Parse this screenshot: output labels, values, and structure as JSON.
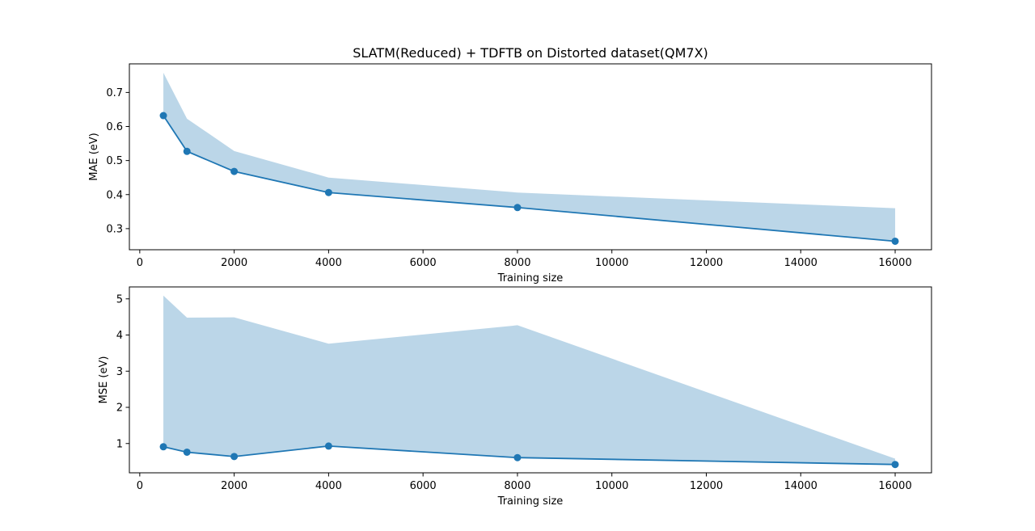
{
  "figure": {
    "title": "SLATM(Reduced) + TDFTB on Distorted dataset(QM7X)"
  },
  "colors": {
    "line": "#1f77b4",
    "band": "#1f77b4"
  },
  "chart_data": [
    {
      "type": "line",
      "title": "SLATM(Reduced) + TDFTB on Distorted dataset(QM7X)",
      "xlabel": "Training size",
      "ylabel": "MAE (eV)",
      "x": [
        500,
        1000,
        2000,
        4000,
        8000,
        16000
      ],
      "series": [
        {
          "values": [
            0.632,
            0.527,
            0.468,
            0.406,
            0.362,
            0.263
          ]
        }
      ],
      "band": {
        "lower": [
          0.632,
          0.527,
          0.468,
          0.406,
          0.362,
          0.263
        ],
        "upper": [
          0.758,
          0.623,
          0.528,
          0.45,
          0.406,
          0.36
        ]
      },
      "xlim": [
        -220,
        16770
      ],
      "ylim": [
        0.238,
        0.784
      ],
      "xticks": [
        0,
        2000,
        4000,
        6000,
        8000,
        10000,
        12000,
        14000,
        16000
      ],
      "yticks": [
        0.3,
        0.4,
        0.5,
        0.6,
        0.7
      ],
      "ytick_decimals": 1,
      "grid": false,
      "markers": "circle"
    },
    {
      "type": "line",
      "xlabel": "Training size",
      "ylabel": "MSE (eV)",
      "x": [
        500,
        1000,
        2000,
        4000,
        8000,
        16000
      ],
      "series": [
        {
          "values": [
            0.91,
            0.76,
            0.64,
            0.93,
            0.61,
            0.42
          ]
        }
      ],
      "band": {
        "lower": [
          0.91,
          0.76,
          0.64,
          0.93,
          0.61,
          0.42
        ],
        "upper": [
          5.09,
          4.48,
          4.49,
          3.76,
          4.27,
          0.58
        ]
      },
      "xlim": [
        -220,
        16770
      ],
      "ylim": [
        0.19,
        5.33
      ],
      "xticks": [
        0,
        2000,
        4000,
        6000,
        8000,
        10000,
        12000,
        14000,
        16000
      ],
      "yticks": [
        1,
        2,
        3,
        4,
        5
      ],
      "ytick_decimals": 0,
      "grid": false,
      "markers": "circle"
    }
  ]
}
